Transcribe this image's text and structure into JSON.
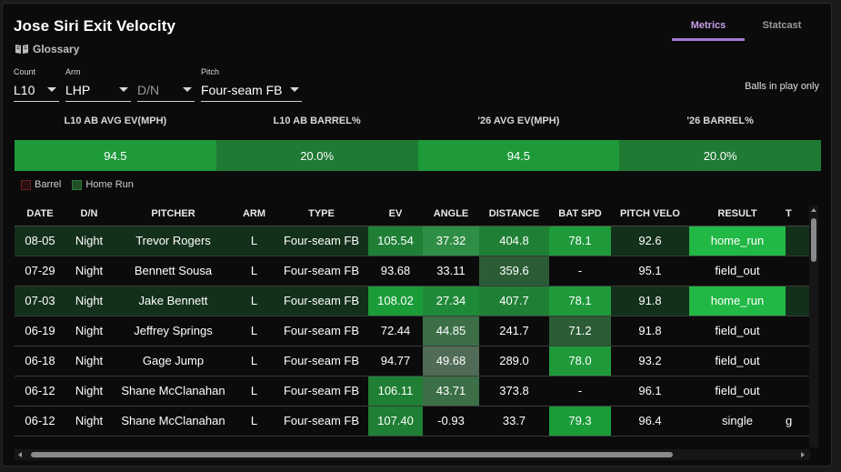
{
  "title": "Jose Siri Exit Velocity",
  "glossary_label": "Glossary",
  "tabs": [
    {
      "label": "Metrics",
      "active": true
    },
    {
      "label": "Statcast",
      "active": false
    }
  ],
  "filters": [
    {
      "label": "Count",
      "value": "L10"
    },
    {
      "label": "Arm",
      "value": "LHP"
    },
    {
      "label": "",
      "value": "D/N"
    },
    {
      "label": "Pitch",
      "value": "Four-seam FB"
    }
  ],
  "balls_in_play_label": "Balls in play only",
  "summary": {
    "headers": [
      "L10 AB AVG EV(MPH)",
      "L10 AB BARREL%",
      "'26 AVG EV(MPH)",
      "'26 BARREL%"
    ],
    "values": [
      "94.5",
      "20.0%",
      "94.5",
      "20.0%"
    ]
  },
  "legend": [
    {
      "label": "Barrel",
      "color": "#5a1b1b"
    },
    {
      "label": "Home Run",
      "color": "#2b6b33"
    }
  ],
  "table": {
    "columns": [
      "DATE",
      "D/N",
      "PITCHER",
      "ARM",
      "TYPE",
      "EV",
      "ANGLE",
      "DISTANCE",
      "BAT SPD",
      "PITCH VELO",
      "RESULT",
      "T"
    ],
    "rows": [
      [
        "08-05",
        "Night",
        "Trevor Rogers",
        "L",
        "Four-seam FB",
        "105.54",
        "37.32",
        "404.8",
        "78.1",
        "92.6",
        "home_run",
        ""
      ],
      [
        "07-29",
        "Night",
        "Bennett Sousa",
        "L",
        "Four-seam FB",
        "93.68",
        "33.11",
        "359.6",
        "-",
        "95.1",
        "field_out",
        ""
      ],
      [
        "07-03",
        "Night",
        "Jake Bennett",
        "L",
        "Four-seam FB",
        "108.02",
        "27.34",
        "407.7",
        "78.1",
        "91.8",
        "home_run",
        ""
      ],
      [
        "06-19",
        "Night",
        "Jeffrey Springs",
        "L",
        "Four-seam FB",
        "72.44",
        "44.85",
        "241.7",
        "71.2",
        "91.8",
        "field_out",
        ""
      ],
      [
        "06-18",
        "Night",
        "Gage Jump",
        "L",
        "Four-seam FB",
        "94.77",
        "49.68",
        "289.0",
        "78.0",
        "93.2",
        "field_out",
        ""
      ],
      [
        "06-12",
        "Night",
        "Shane McClanahan",
        "L",
        "Four-seam FB",
        "106.11",
        "43.71",
        "373.8",
        "-",
        "96.1",
        "field_out",
        ""
      ],
      [
        "06-12",
        "Night",
        "Shane McClanahan",
        "L",
        "Four-seam FB",
        "107.40",
        "-0.93",
        "33.7",
        "79.3",
        "96.4",
        "single",
        "g"
      ]
    ]
  }
}
